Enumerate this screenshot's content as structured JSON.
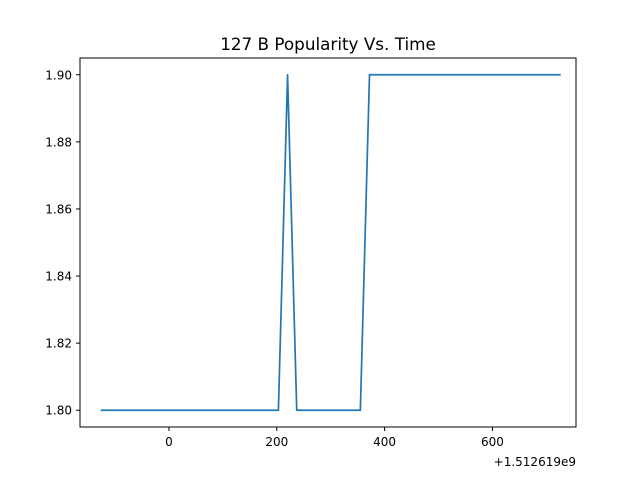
{
  "chart_data": {
    "type": "line",
    "title": "127 B Popularity Vs. Time",
    "xlabel": "",
    "ylabel": "",
    "x_offset_label": "+1.512619e9",
    "xlim": [
      -165,
      755
    ],
    "ylim": [
      1.795,
      1.905
    ],
    "x_ticks": [
      0,
      200,
      400,
      600
    ],
    "x_tick_labels": [
      "0",
      "200",
      "400",
      "600"
    ],
    "y_ticks": [
      1.8,
      1.82,
      1.84,
      1.86,
      1.88,
      1.9
    ],
    "y_tick_labels": [
      "1.80",
      "1.82",
      "1.84",
      "1.86",
      "1.88",
      "1.90"
    ],
    "grid": false,
    "series": [
      {
        "color": "#1f77b4",
        "x": [
          -125,
          203,
          220,
          237,
          355,
          372,
          725
        ],
        "y": [
          1.8,
          1.8,
          1.9,
          1.8,
          1.8,
          1.9,
          1.9
        ]
      }
    ]
  }
}
